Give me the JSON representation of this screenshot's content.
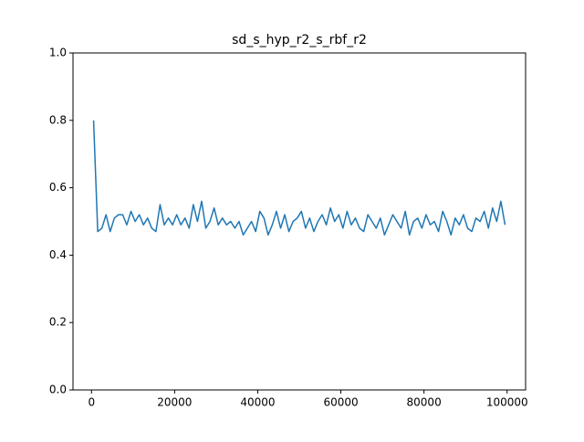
{
  "chart_data": {
    "type": "line",
    "title": "sd_s_hyp_r2_s_rbf_r2",
    "x": [
      500,
      1500,
      2500,
      3500,
      4500,
      5500,
      6500,
      7500,
      8500,
      9500,
      10500,
      11500,
      12500,
      13500,
      14500,
      15500,
      16500,
      17500,
      18500,
      19500,
      20500,
      21500,
      22500,
      23500,
      24500,
      25500,
      26500,
      27500,
      28500,
      29500,
      30500,
      31500,
      32500,
      33500,
      34500,
      35500,
      36500,
      37500,
      38500,
      39500,
      40500,
      41500,
      42500,
      43500,
      44500,
      45500,
      46500,
      47500,
      48500,
      49500,
      50500,
      51500,
      52500,
      53500,
      54500,
      55500,
      56500,
      57500,
      58500,
      59500,
      60500,
      61500,
      62500,
      63500,
      64500,
      65500,
      66500,
      67500,
      68500,
      69500,
      70500,
      71500,
      72500,
      73500,
      74500,
      75500,
      76500,
      77500,
      78500,
      79500,
      80500,
      81500,
      82500,
      83500,
      84500,
      85500,
      86500,
      87500,
      88500,
      89500,
      90500,
      91500,
      92500,
      93500,
      94500,
      95500,
      96500,
      97500,
      98500,
      99500
    ],
    "series": [
      {
        "color": "#1f77b4",
        "values": [
          0.8,
          0.47,
          0.48,
          0.52,
          0.47,
          0.51,
          0.52,
          0.52,
          0.49,
          0.53,
          0.5,
          0.52,
          0.49,
          0.51,
          0.48,
          0.47,
          0.55,
          0.49,
          0.51,
          0.49,
          0.52,
          0.49,
          0.51,
          0.48,
          0.55,
          0.5,
          0.56,
          0.48,
          0.5,
          0.54,
          0.49,
          0.51,
          0.49,
          0.5,
          0.48,
          0.5,
          0.46,
          0.48,
          0.5,
          0.47,
          0.53,
          0.51,
          0.46,
          0.49,
          0.53,
          0.48,
          0.52,
          0.47,
          0.5,
          0.51,
          0.53,
          0.48,
          0.51,
          0.47,
          0.5,
          0.52,
          0.49,
          0.54,
          0.5,
          0.52,
          0.48,
          0.53,
          0.49,
          0.51,
          0.48,
          0.47,
          0.52,
          0.5,
          0.48,
          0.51,
          0.46,
          0.49,
          0.52,
          0.5,
          0.48,
          0.53,
          0.46,
          0.5,
          0.51,
          0.48,
          0.52,
          0.49,
          0.5,
          0.47,
          0.53,
          0.5,
          0.46,
          0.51,
          0.49,
          0.52,
          0.48,
          0.47,
          0.51,
          0.5,
          0.53,
          0.48,
          0.54,
          0.5,
          0.56,
          0.49
        ]
      }
    ],
    "xlim": [
      -4450,
      104450
    ],
    "ylim": [
      0,
      1
    ],
    "xticks": [
      0,
      20000,
      40000,
      60000,
      80000,
      100000
    ],
    "yticks": [
      {
        "value": 0,
        "label": "0.0"
      },
      0.2,
      0.4,
      0.6,
      0.8,
      {
        "value": 1,
        "label": "1.0"
      }
    ]
  }
}
